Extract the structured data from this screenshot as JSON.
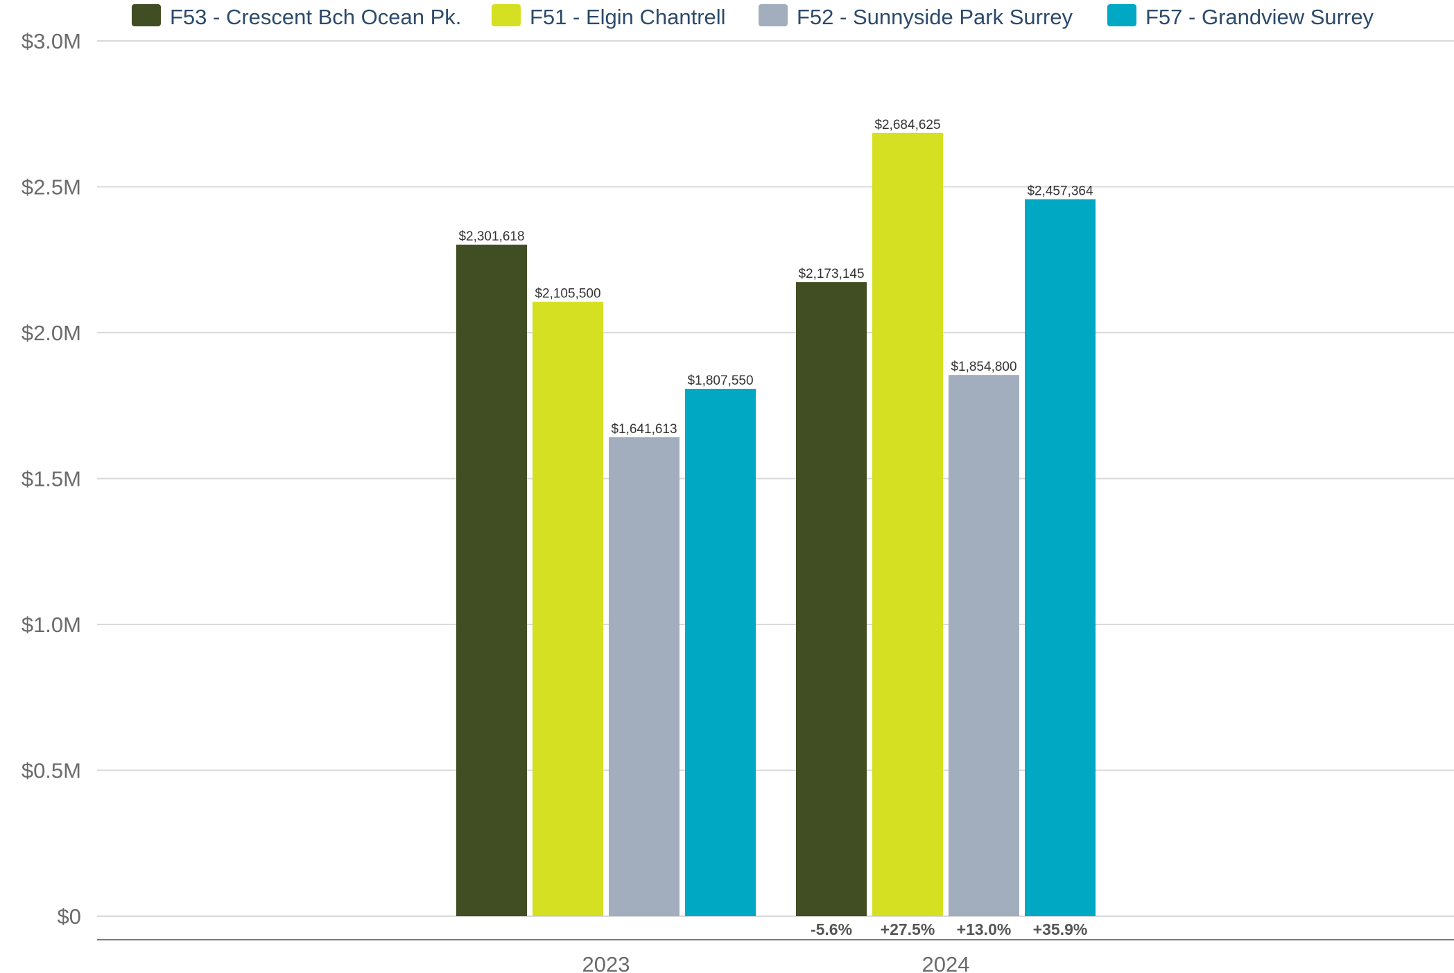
{
  "chart_data": {
    "type": "bar",
    "categories": [
      "2023",
      "2024"
    ],
    "series": [
      {
        "name": "F53 - Crescent Bch Ocean Pk.",
        "color": "#414d22",
        "values": [
          2301618,
          2173145
        ]
      },
      {
        "name": "F51 - Elgin Chantrell",
        "color": "#d4e021",
        "values": [
          2105500,
          2684625
        ]
      },
      {
        "name": "F52 - Sunnyside Park Surrey",
        "color": "#a2aebd",
        "values": [
          1641613,
          1854800
        ]
      },
      {
        "name": "F57 - Grandview Surrey",
        "color": "#00a8c3",
        "values": [
          1807550,
          2457364
        ]
      }
    ],
    "data_labels": [
      [
        "$2,301,618",
        "$2,173,145"
      ],
      [
        "$2,105,500",
        "$2,684,625"
      ],
      [
        "$1,641,613",
        "$1,854,800"
      ],
      [
        "$1,807,550",
        "$2,457,364"
      ]
    ],
    "change_labels": {
      "category": "2024",
      "values": [
        "-5.6%",
        "+27.5%",
        "+13.0%",
        "+35.9%"
      ]
    },
    "y_ticks": [
      {
        "value": 0,
        "label": "$0"
      },
      {
        "value": 500000,
        "label": "$0.5M"
      },
      {
        "value": 1000000,
        "label": "$1.0M"
      },
      {
        "value": 1500000,
        "label": "$1.5M"
      },
      {
        "value": 2000000,
        "label": "$2.0M"
      },
      {
        "value": 2500000,
        "label": "$2.5M"
      },
      {
        "value": 3000000,
        "label": "$3.0M"
      }
    ],
    "ylim": [
      0,
      3000000
    ],
    "title": "",
    "xlabel": "",
    "ylabel": "",
    "grid": true,
    "legend_position": "top"
  }
}
